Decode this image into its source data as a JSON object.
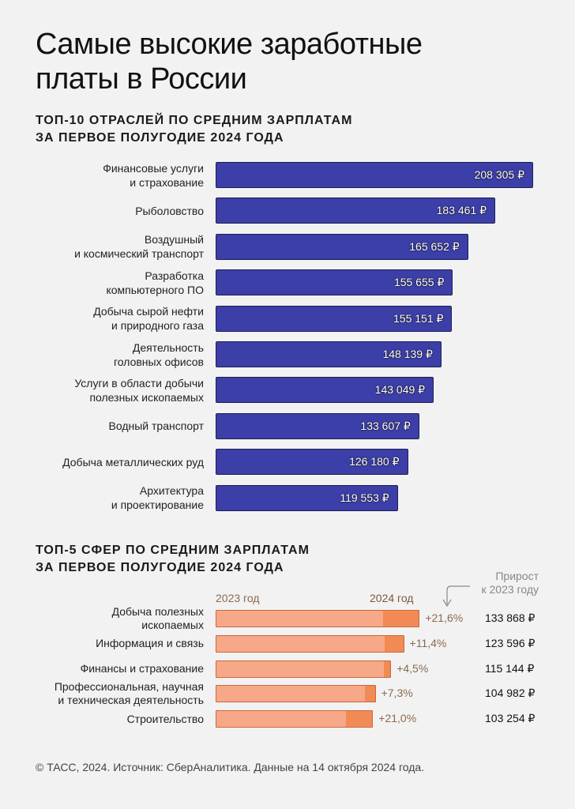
{
  "header": {
    "title": "Самые высокие заработные\nплаты в России"
  },
  "chart_data": [
    {
      "type": "bar",
      "orientation": "horizontal",
      "title": "ТОП-10 ОТРАСЛЕЙ ПО СРЕДНИМ ЗАРПЛАТАМ\nЗА ПЕРВОЕ ПОЛУГОДИЕ 2024 ГОДА",
      "categories": [
        "Финансовые услуги\nи страхование",
        "Рыболовство",
        "Воздушный\nи космический транспорт",
        "Разработка\nкомпьютерного ПО",
        "Добыча сырой нефти\nи природного газа",
        "Деятельность\nголовных офисов",
        "Услуги в области добычи\nполезных ископаемых",
        "Водный транспорт",
        "Добыча металлических руд",
        "Архитектура\nи проектирование"
      ],
      "values": [
        208305,
        183461,
        165652,
        155655,
        155151,
        148139,
        143049,
        133607,
        126180,
        119553
      ],
      "value_labels": [
        "208 305 ₽",
        "183 461 ₽",
        "165 652 ₽",
        "155 655 ₽",
        "155 151 ₽",
        "148 139 ₽",
        "143 049 ₽",
        "133 607 ₽",
        "126 180 ₽",
        "119 553 ₽"
      ],
      "unit": "₽",
      "color": "#3c3fa8"
    },
    {
      "type": "bar",
      "orientation": "horizontal",
      "stacked": true,
      "title": "ТОП-5 СФЕР ПО СРЕДНИМ ЗАРПЛАТАМ\nЗА ПЕРВОЕ ПОЛУГОДИЕ 2024 ГОДА",
      "legend": {
        "y2023": "2023 год",
        "y2024": "2024 год"
      },
      "growth_note": "Прирост\nк 2023 году",
      "categories": [
        "Добыча полезных\nископаемых",
        "Информация и связь",
        "Финансы и страхование",
        "Профессиональная, научная\nи техническая деятельность",
        "Строительство"
      ],
      "values_2024": [
        133868,
        123596,
        115144,
        104982,
        103254
      ],
      "growth_pct": [
        21.6,
        11.4,
        4.5,
        7.3,
        21.0
      ],
      "growth_labels": [
        "+21,6%",
        "+11,4%",
        "+4,5%",
        "+7,3%",
        "+21,0%"
      ],
      "value_labels": [
        "133 868 ₽",
        "123 596 ₽",
        "115 144 ₽",
        "104 982 ₽",
        "103 254 ₽"
      ],
      "colors": {
        "y2023": "#f7a888",
        "y2024": "#f28a55"
      }
    }
  ],
  "footer": {
    "source": "© ТАСС, 2024. Источник: СберАналитика. Данные на 14 октября 2024 года."
  }
}
